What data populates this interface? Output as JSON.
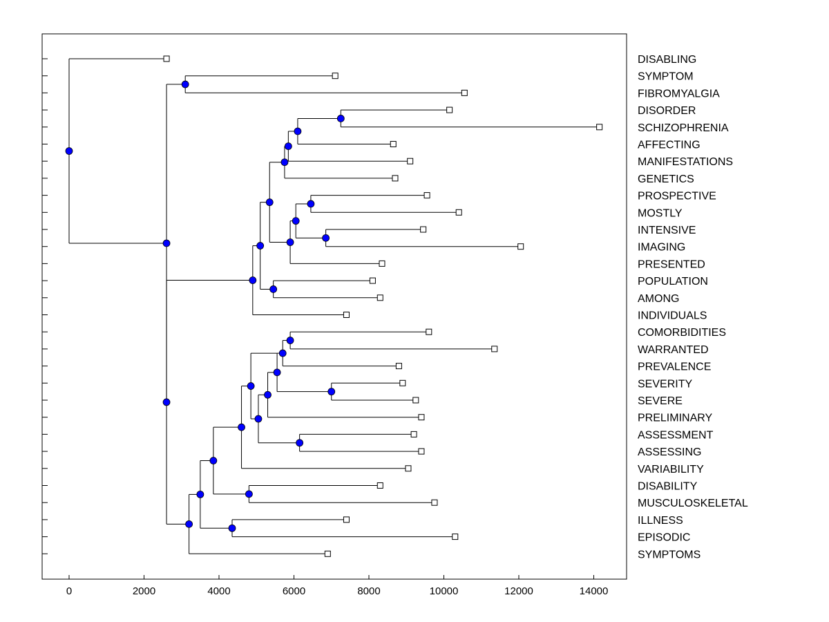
{
  "chart_data": {
    "type": "dendrogram",
    "title": "",
    "xlabel": "",
    "ylabel": "",
    "xlim": [
      -700,
      14900
    ],
    "x_ticks": [
      0,
      2000,
      4000,
      6000,
      8000,
      10000,
      12000,
      14000
    ],
    "grid": false,
    "leaves": [
      {
        "label": "DISABLING",
        "x": 2600
      },
      {
        "label": "SYMPTOM",
        "x": 7100
      },
      {
        "label": "FIBROMYALGIA",
        "x": 10550
      },
      {
        "label": "DISORDER",
        "x": 10150
      },
      {
        "label": "SCHIZOPHRENIA",
        "x": 14150
      },
      {
        "label": "AFFECTING",
        "x": 8650
      },
      {
        "label": "MANIFESTATIONS",
        "x": 9100
      },
      {
        "label": "GENETICS",
        "x": 8700
      },
      {
        "label": "PROSPECTIVE",
        "x": 9550
      },
      {
        "label": "MOSTLY",
        "x": 10400
      },
      {
        "label": "INTENSIVE",
        "x": 9450
      },
      {
        "label": "IMAGING",
        "x": 12050
      },
      {
        "label": "PRESENTED",
        "x": 8350
      },
      {
        "label": "POPULATION",
        "x": 8100
      },
      {
        "label": "AMONG",
        "x": 8300
      },
      {
        "label": "INDIVIDUALS",
        "x": 7400
      },
      {
        "label": "COMORBIDITIES",
        "x": 9600
      },
      {
        "label": "WARRANTED",
        "x": 11350
      },
      {
        "label": "PREVALENCE",
        "x": 8800
      },
      {
        "label": "SEVERITY",
        "x": 8900
      },
      {
        "label": "SEVERE",
        "x": 9250
      },
      {
        "label": "PRELIMINARY",
        "x": 9400
      },
      {
        "label": "ASSESSMENT",
        "x": 9200
      },
      {
        "label": "ASSESSING",
        "x": 9400
      },
      {
        "label": "VARIABILITY",
        "x": 9050
      },
      {
        "label": "DISABILITY",
        "x": 8300
      },
      {
        "label": "MUSCULOSKELETAL",
        "x": 9750
      },
      {
        "label": "ILLNESS",
        "x": 7400
      },
      {
        "label": "EPISODIC",
        "x": 10300
      },
      {
        "label": "SYMPTOMS",
        "x": 6900
      }
    ],
    "nodes": [
      {
        "id": "N0",
        "x": 0,
        "children": [
          "L0",
          "N1"
        ]
      },
      {
        "id": "N1",
        "x": 2600,
        "children": [
          "N2",
          "N4"
        ]
      },
      {
        "id": "N2",
        "x": 3100,
        "children": [
          "L1",
          "L2"
        ]
      },
      {
        "id": "N4",
        "x": 2600,
        "children": [
          "N5",
          "N27"
        ]
      },
      {
        "id": "N5",
        "x": 4900,
        "children": [
          "N6",
          "L15"
        ]
      },
      {
        "id": "N6",
        "x": 5100,
        "children": [
          "N7",
          "N13"
        ]
      },
      {
        "id": "N7",
        "x": 5350,
        "children": [
          "N8",
          "N11"
        ]
      },
      {
        "id": "N8",
        "x": 5750,
        "children": [
          "N9",
          "L7"
        ]
      },
      {
        "id": "N9",
        "x": 5850,
        "children": [
          "N10",
          "L6"
        ]
      },
      {
        "id": "N10",
        "x": 6100,
        "children": [
          "N3",
          "L5"
        ]
      },
      {
        "id": "N3",
        "x": 7250,
        "children": [
          "L3",
          "L4"
        ]
      },
      {
        "id": "N11",
        "x": 5900,
        "children": [
          "N12",
          "L12"
        ]
      },
      {
        "id": "N12",
        "x": 6050,
        "children": [
          "N14",
          "N15"
        ]
      },
      {
        "id": "N14",
        "x": 6450,
        "children": [
          "L8",
          "L9"
        ]
      },
      {
        "id": "N15",
        "x": 6850,
        "children": [
          "L10",
          "L11"
        ]
      },
      {
        "id": "N13",
        "x": 5450,
        "children": [
          "L13",
          "L14"
        ]
      },
      {
        "id": "N27",
        "x": 3200,
        "children": [
          "N26",
          "L29"
        ]
      },
      {
        "id": "N26",
        "x": 3500,
        "children": [
          "N25",
          "N28"
        ]
      },
      {
        "id": "N28",
        "x": 4350,
        "children": [
          "L27",
          "L28"
        ]
      },
      {
        "id": "N25",
        "x": 3850,
        "children": [
          "N24",
          "N29"
        ]
      },
      {
        "id": "N29",
        "x": 4800,
        "children": [
          "L25",
          "L26"
        ]
      },
      {
        "id": "N24",
        "x": 4600,
        "children": [
          "N23",
          "L24"
        ]
      },
      {
        "id": "N23",
        "x": 4850,
        "children": [
          "N18",
          "N22"
        ]
      },
      {
        "id": "N22",
        "x": 5050,
        "children": [
          "N21",
          "N30"
        ]
      },
      {
        "id": "N30",
        "x": 6150,
        "children": [
          "L22",
          "L23"
        ]
      },
      {
        "id": "N21",
        "x": 5300,
        "children": [
          "N20",
          "L21"
        ]
      },
      {
        "id": "N20",
        "x": 5550,
        "children": [
          "N19",
          "N31"
        ]
      },
      {
        "id": "N31",
        "x": 7000,
        "children": [
          "L19",
          "L20"
        ]
      },
      {
        "id": "N19",
        "x": 5700,
        "children": [
          "N18b",
          "L18"
        ]
      },
      {
        "id": "N18b",
        "x": 5900,
        "children": [
          "L16",
          "L17"
        ]
      },
      {
        "id": "N18",
        "x": 5550,
        "children": [
          "N19"
        ]
      }
    ]
  }
}
